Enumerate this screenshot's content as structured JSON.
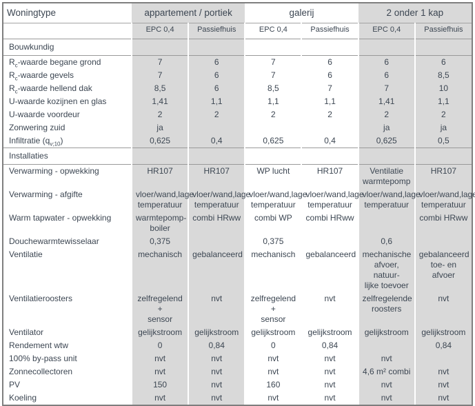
{
  "table": {
    "title_col": "Woningtype",
    "groups": [
      {
        "label": "appartement / portiek",
        "shaded": true
      },
      {
        "label": "galerij",
        "shaded": false
      },
      {
        "label": "2 onder 1 kap",
        "shaded": true
      }
    ],
    "subheaders": [
      "EPC 0,4",
      "Passiefhuis"
    ],
    "sections": [
      {
        "title": "Bouwkundig",
        "rows": [
          {
            "label": "R{c}-waarde begane grond",
            "values": [
              "7",
              "6",
              "7",
              "6",
              "6",
              "6"
            ]
          },
          {
            "label": "R{c}-waarde gevels",
            "values": [
              "7",
              "6",
              "7",
              "6",
              "6",
              "8,5"
            ]
          },
          {
            "label": "R{c}-waarde hellend dak",
            "values": [
              "8,5",
              "6",
              "8,5",
              "7",
              "7",
              "10"
            ]
          },
          {
            "label": "U-waarde kozijnen en glas",
            "values": [
              "1,41",
              "1,1",
              "1,1",
              "1,1",
              "1,41",
              "1,1"
            ]
          },
          {
            "label": "U-waarde voordeur",
            "values": [
              "2",
              "2",
              "2",
              "2",
              "2",
              "2"
            ]
          },
          {
            "label": "Zonwering zuid",
            "values": [
              "ja",
              "",
              "",
              "",
              "ja",
              "ja"
            ]
          },
          {
            "label": "Infiltratie (q{v;10})",
            "values": [
              "0,625",
              "0,4",
              "0,625",
              "0,4",
              "0,625",
              "0,5"
            ]
          }
        ]
      },
      {
        "title": "Installaties",
        "rows": [
          {
            "label": "Verwarming - opwekking",
            "values": [
              "HR107",
              "HR107",
              "WP lucht",
              "HR107",
              "Ventilatie\nwarmtepomp",
              "HR107"
            ]
          },
          {
            "label": "Verwarming - afgifte",
            "values": [
              "vloer/wand,lage\ntemperatuur",
              "vloer/wand,lage\ntemperatuur",
              "vloer/wand,lage\ntemperatuur",
              "vloer/wand,lage\ntemperatuur",
              "vloer/wand,lage\ntemperatuur",
              "vloer/wand,lage\ntemperatuur"
            ]
          },
          {
            "label": "Warm tapwater - opwekking",
            "values": [
              "warmtepomp-\nboiler",
              "combi HRww",
              "combi WP",
              "combi HRww",
              "",
              "combi HRww"
            ]
          },
          {
            "label": "Douchewarmtewisselaar",
            "values": [
              "0,375",
              "",
              "0,375",
              "",
              "0,6",
              ""
            ]
          },
          {
            "label": "Ventilatie",
            "values": [
              "mechanisch",
              "gebalanceerd",
              "mechanisch",
              "gebalanceerd",
              "mechanische\nafvoer, natuur-\nlijke toevoer",
              "gebalanceerd\ntoe- en afvoer"
            ]
          },
          {
            "label": "Ventilatieroosters",
            "values": [
              "zelfregelend +\nsensor",
              "nvt",
              "zelfregelend +\nsensor",
              "nvt",
              "zelfregelende\nroosters",
              "nvt"
            ]
          },
          {
            "label": "Ventilator",
            "values": [
              "gelijkstroom",
              "gelijkstroom",
              "gelijkstroom",
              "gelijkstroom",
              "gelijkstroom",
              "gelijkstroom"
            ]
          },
          {
            "label": "Rendement wtw",
            "values": [
              "0",
              "0,84",
              "0",
              "0,84",
              "",
              "0,84"
            ]
          },
          {
            "label": "100% by-pass unit",
            "values": [
              "nvt",
              "nvt",
              "nvt",
              "nvt",
              "nvt",
              ""
            ]
          },
          {
            "label": "Zonnecollectoren",
            "values": [
              "nvt",
              "nvt",
              "nvt",
              "nvt",
              "4,6 m² combi",
              "nvt"
            ]
          },
          {
            "label": "PV",
            "values": [
              "150",
              "nvt",
              "160",
              "nvt",
              "nvt",
              "nvt"
            ]
          },
          {
            "label": "Koeling",
            "values": [
              "nvt",
              "nvt",
              "nvt",
              "nvt",
              "nvt",
              "nvt"
            ]
          }
        ]
      }
    ]
  },
  "colors": {
    "shaded_column": "#d9d9d9",
    "text": "#3c4652",
    "grid_line": "#999999",
    "outer_border": "#7e7e7e"
  }
}
